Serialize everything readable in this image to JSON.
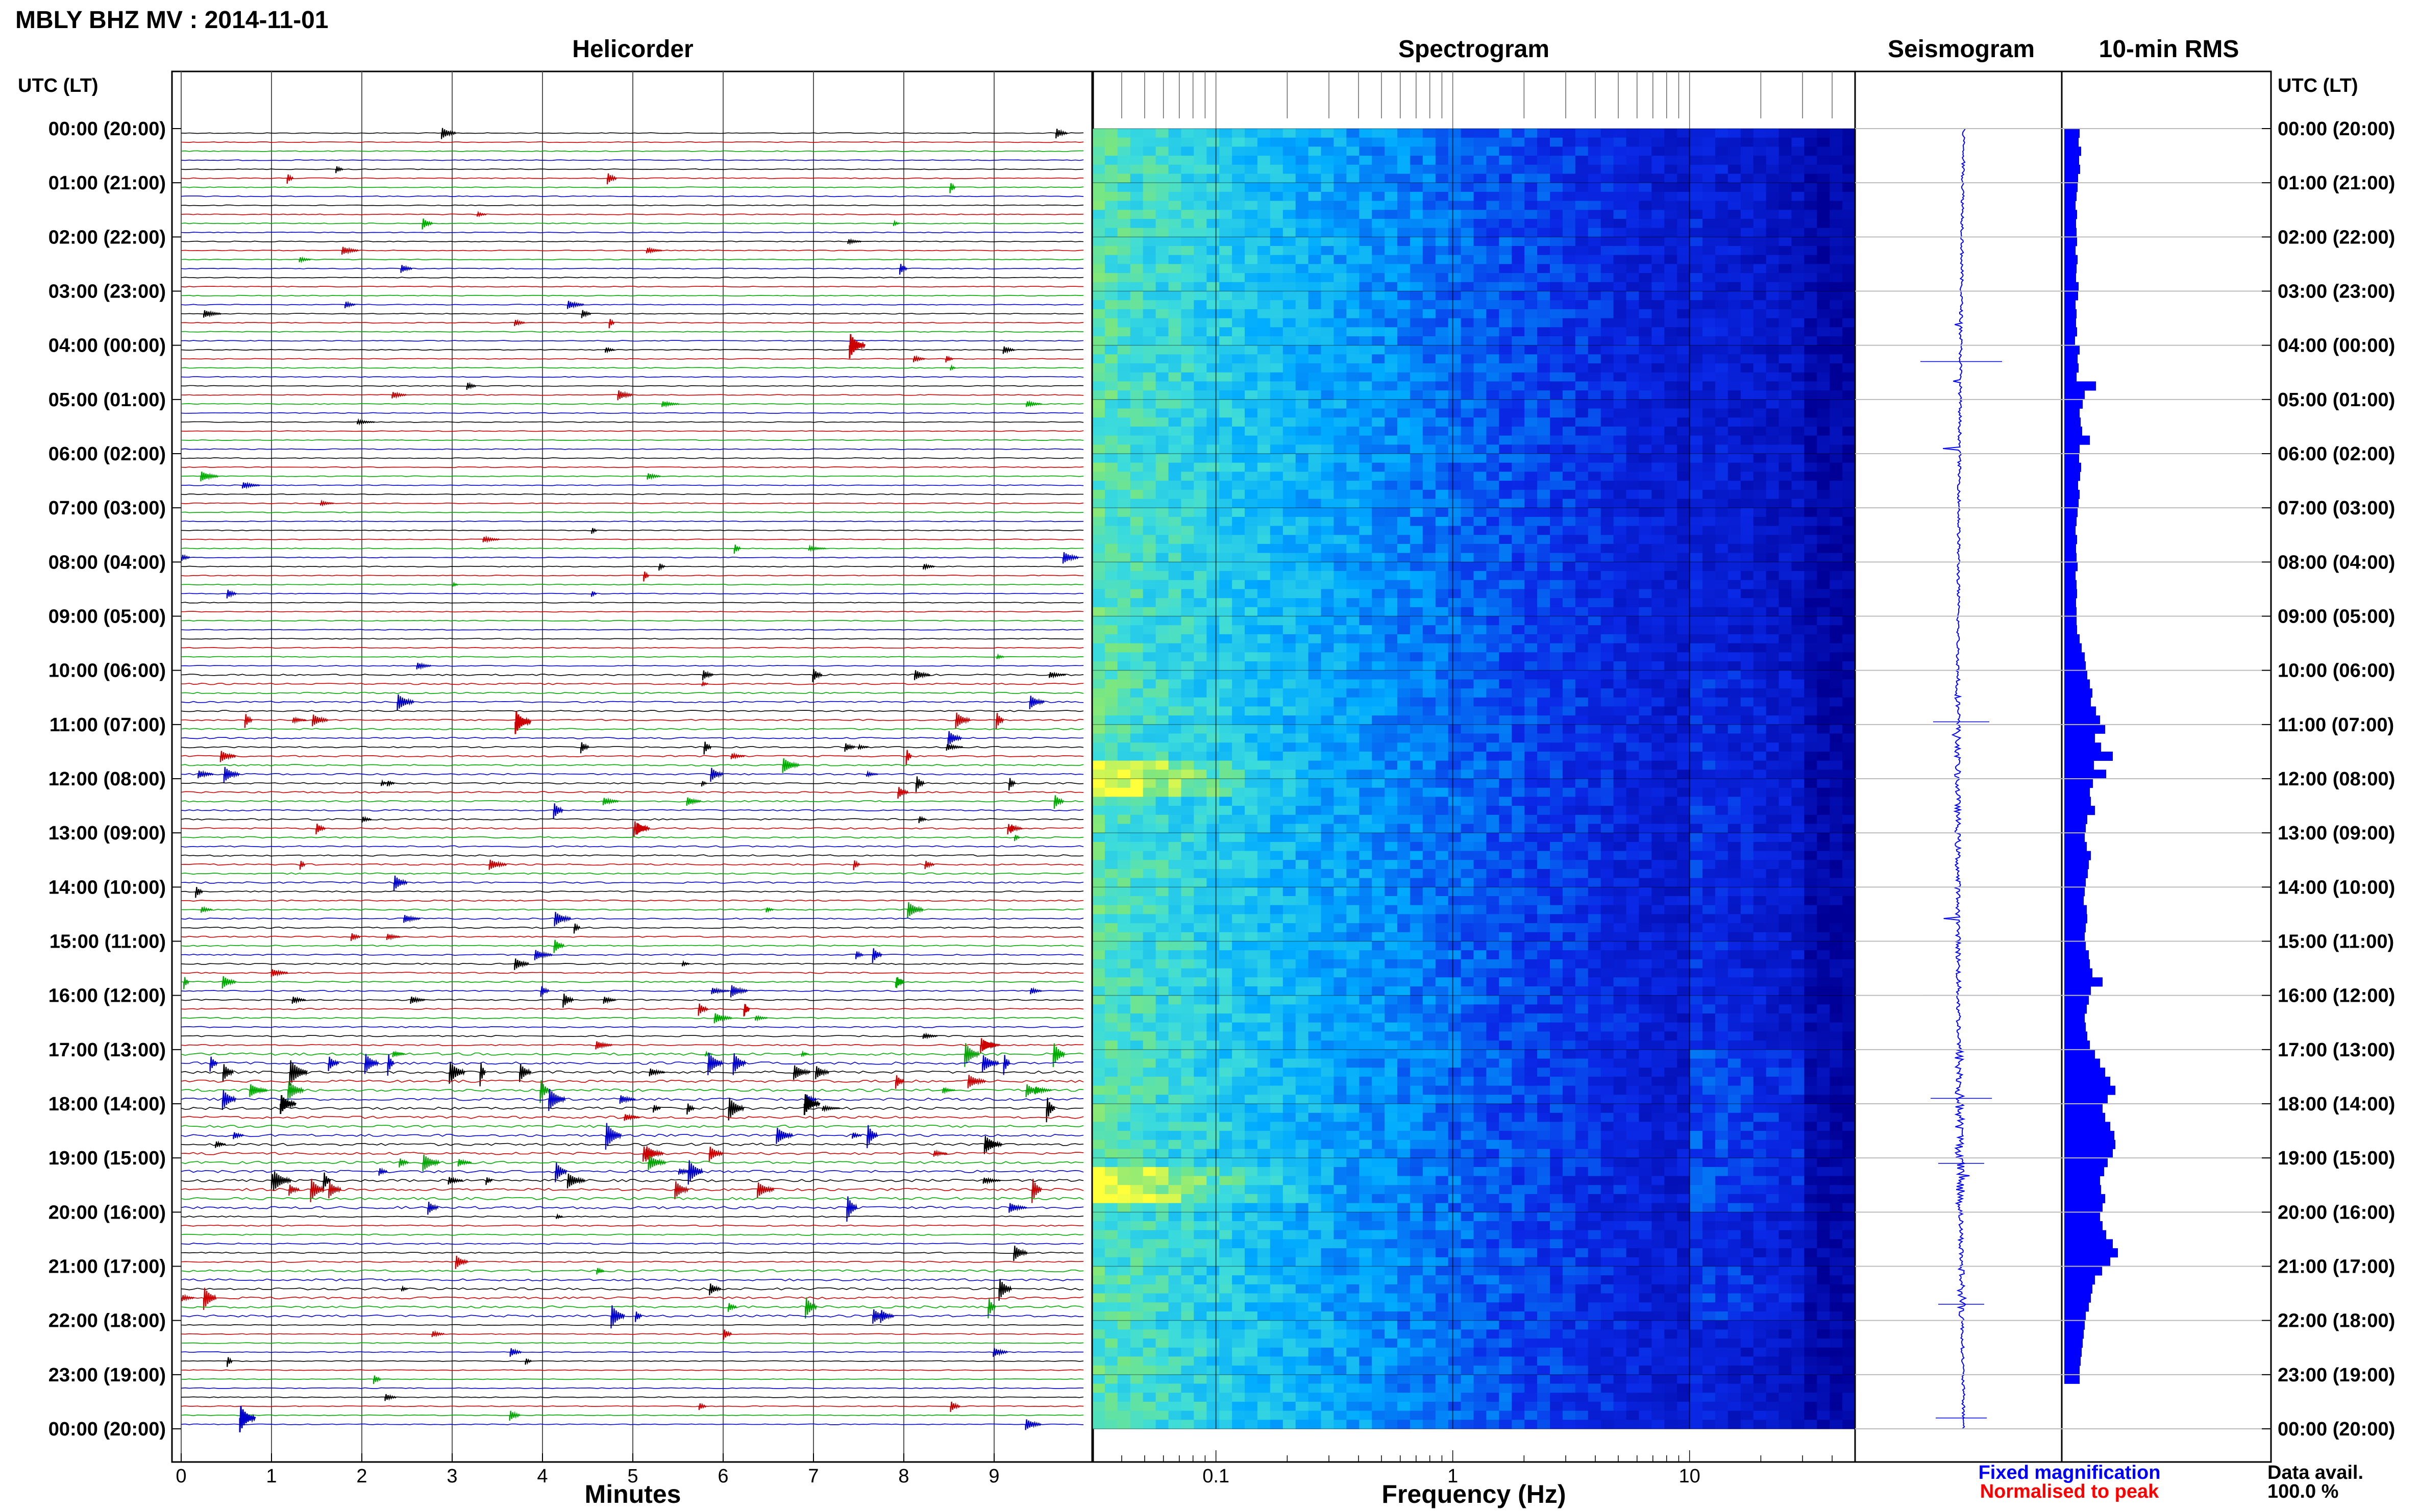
{
  "title": "MBLY BHZ MV : 2014-11-01",
  "panels": {
    "helicorder": "Helicorder",
    "spectrogram": "Spectrogram",
    "seismogram": "Seismogram",
    "rms": "10-min RMS"
  },
  "time_axis_header": "UTC (LT)",
  "time_labels": [
    "00:00 (20:00)",
    "01:00 (21:00)",
    "02:00 (22:00)",
    "03:00 (23:00)",
    "04:00 (00:00)",
    "05:00 (01:00)",
    "06:00 (02:00)",
    "07:00 (03:00)",
    "08:00 (04:00)",
    "09:00 (05:00)",
    "10:00 (06:00)",
    "11:00 (07:00)",
    "12:00 (08:00)",
    "13:00 (09:00)",
    "14:00 (10:00)",
    "15:00 (11:00)",
    "16:00 (12:00)",
    "17:00 (13:00)",
    "18:00 (14:00)",
    "19:00 (15:00)",
    "20:00 (16:00)",
    "21:00 (17:00)",
    "22:00 (18:00)",
    "23:00 (19:00)",
    "00:00 (20:00)"
  ],
  "helicorder_axis": {
    "xlabel": "Minutes",
    "ticks": [
      "0",
      "1",
      "2",
      "3",
      "4",
      "5",
      "6",
      "7",
      "8",
      "9"
    ]
  },
  "spectrogram_axis": {
    "xlabel": "Frequency (Hz)",
    "ticks": [
      "0.1",
      "1",
      "10"
    ]
  },
  "legend": {
    "fixed": "Fixed magnification",
    "normalised": "Normalised to peak",
    "fixed_color": "#0000ff",
    "normalised_color": "#ff0000"
  },
  "data_avail": {
    "label": "Data avail.",
    "value": "100.0 %"
  },
  "colors": {
    "trace_cycle": [
      "#000000",
      "#cc0000",
      "#00aa00",
      "#0000cc"
    ],
    "rms": "#0000ff",
    "seismogram": "#0000ff",
    "spec_low": "#0000a0",
    "spec_high": "#ffff40"
  },
  "chart_data": [
    {
      "type": "line",
      "panel": "Helicorder",
      "x_unit": "minutes",
      "xlim": [
        0,
        10
      ],
      "lines_per_hour": 6,
      "hours": 24,
      "xlabel": "Minutes"
    },
    {
      "type": "heatmap",
      "panel": "Spectrogram",
      "x_scale": "log",
      "xlim": [
        0.03,
        50
      ],
      "xlabel": "Frequency (Hz)",
      "high_energy_bands_utc_hours": [
        11.9,
        19.4
      ]
    },
    {
      "type": "line",
      "panel": "Seismogram",
      "note": "24-hour compressed trace"
    },
    {
      "type": "bar",
      "panel": "10-min RMS",
      "interval_minutes": 10,
      "values": [
        0.3,
        0.28,
        0.33,
        0.29,
        0.31,
        0.27,
        0.26,
        0.24,
        0.22,
        0.25,
        0.23,
        0.24,
        0.25,
        0.22,
        0.26,
        0.24,
        0.23,
        0.28,
        0.27,
        0.22,
        0.24,
        0.23,
        0.25,
        0.21,
        0.3,
        0.26,
        0.28,
        0.24,
        0.62,
        0.4,
        0.36,
        0.3,
        0.32,
        0.35,
        0.5,
        0.3,
        0.29,
        0.33,
        0.31,
        0.27,
        0.3,
        0.28,
        0.26,
        0.24,
        0.22,
        0.25,
        0.23,
        0.24,
        0.26,
        0.22,
        0.24,
        0.25,
        0.23,
        0.24,
        0.24,
        0.25,
        0.3,
        0.34,
        0.4,
        0.42,
        0.45,
        0.5,
        0.55,
        0.52,
        0.62,
        0.7,
        0.8,
        0.6,
        0.72,
        0.95,
        0.58,
        0.82,
        0.56,
        0.5,
        0.52,
        0.6,
        0.45,
        0.42,
        0.4,
        0.44,
        0.52,
        0.48,
        0.46,
        0.42,
        0.4,
        0.38,
        0.44,
        0.45,
        0.42,
        0.4,
        0.42,
        0.48,
        0.5,
        0.55,
        0.75,
        0.52,
        0.48,
        0.44,
        0.4,
        0.42,
        0.45,
        0.5,
        0.6,
        0.7,
        0.8,
        0.9,
        1.0,
        0.85,
        0.75,
        0.8,
        0.9,
        0.98,
        1.0,
        0.95,
        0.85,
        0.78,
        0.7,
        0.72,
        0.8,
        0.75,
        0.7,
        0.75,
        0.82,
        0.95,
        1.05,
        0.9,
        0.74,
        0.6,
        0.55,
        0.52,
        0.48,
        0.42,
        0.4,
        0.38,
        0.36,
        0.34,
        0.32,
        0.3,
        0.3
      ]
    }
  ]
}
